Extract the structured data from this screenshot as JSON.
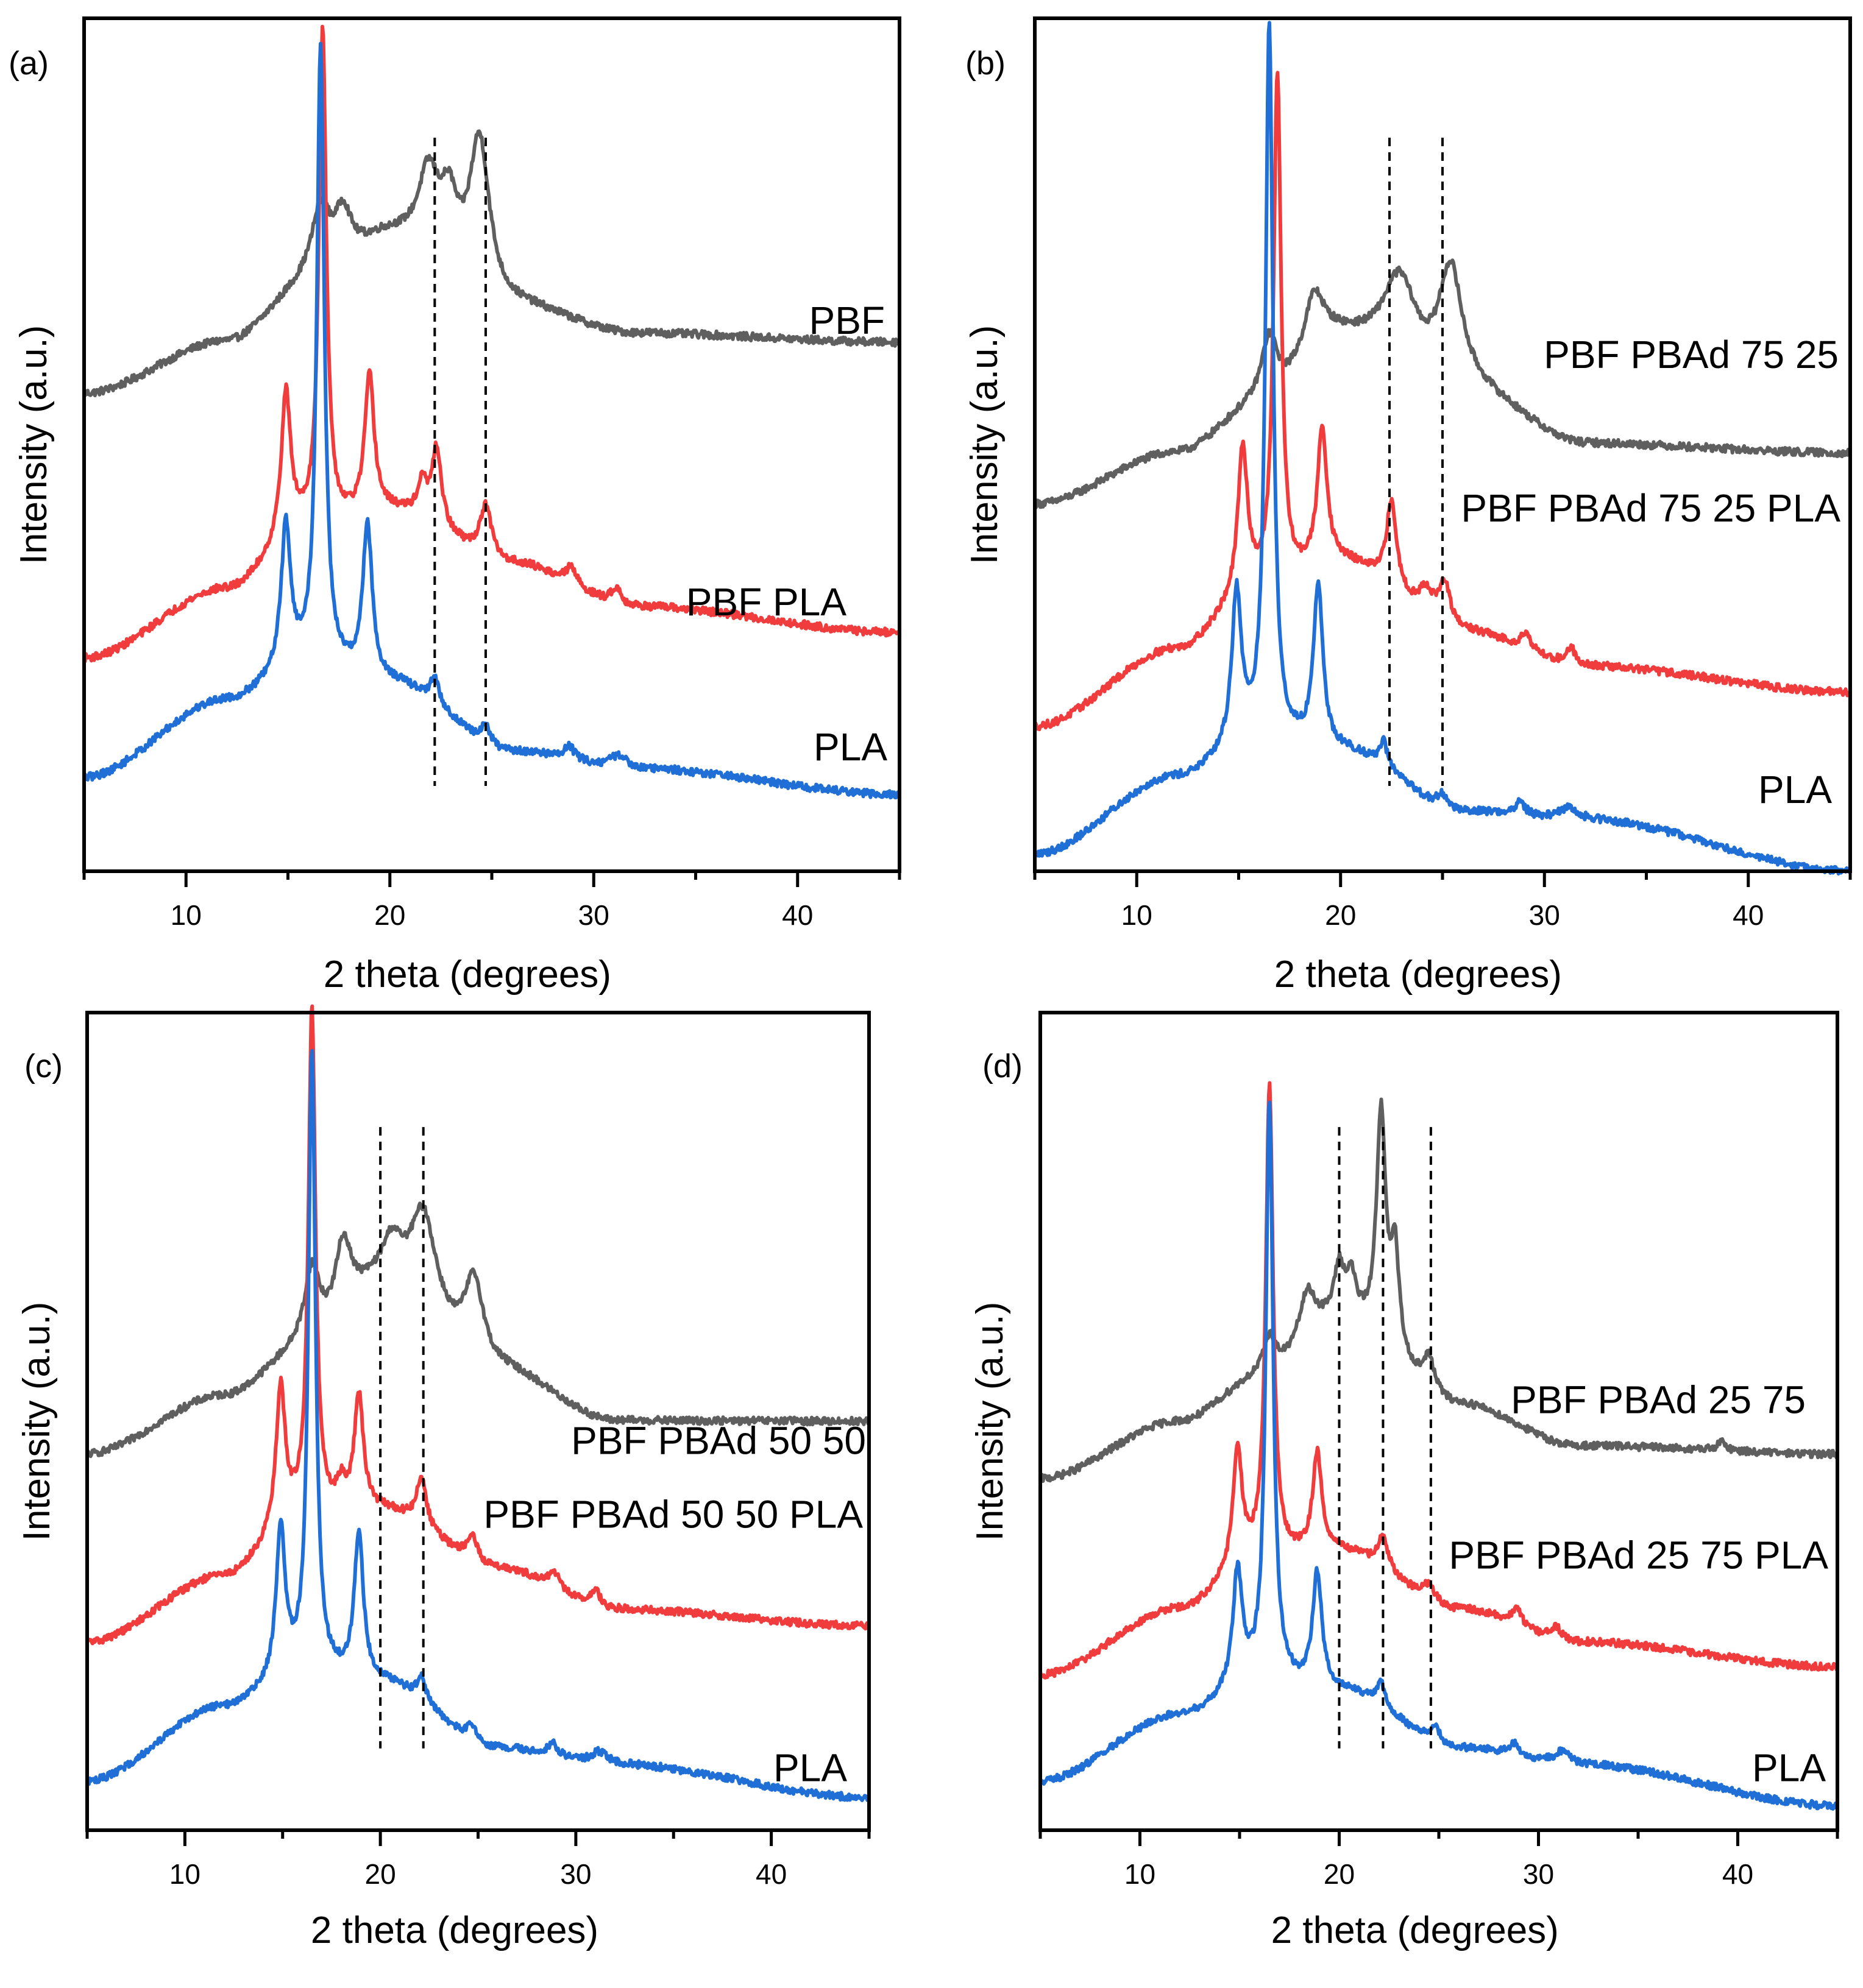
{
  "figure": {
    "colors": {
      "gray": "#5f5f5f",
      "red": "#f03c3c",
      "blue": "#1f6fd6",
      "axis": "#000000"
    }
  },
  "chart_data": [
    {
      "type": "line",
      "panel_label": "(a)",
      "xlabel": "2 theta (degrees)",
      "ylabel": "Intensity (a.u.)",
      "xlim": [
        5,
        45
      ],
      "ylim": [
        0,
        100
      ],
      "xticks": [
        "10",
        "20",
        "30",
        "40"
      ],
      "xtick_values": [
        10,
        20,
        30,
        40
      ],
      "dashed_lines_x": [
        22.2,
        24.7
      ],
      "series": [
        {
          "name": "PBF",
          "color": "gray",
          "baseline": [
            [
              5,
              56
            ],
            [
              12,
              62
            ],
            [
              16,
              68
            ],
            [
              20,
              74
            ],
            [
              26,
              66
            ],
            [
              32,
              63
            ],
            [
              45,
              62
            ]
          ],
          "peaks": [
            [
              16.6,
              9,
              0.6
            ],
            [
              17.7,
              6,
              0.5
            ],
            [
              21.9,
              9,
              0.6
            ],
            [
              22.9,
              7,
              0.5
            ],
            [
              24.4,
              18,
              0.6
            ]
          ]
        },
        {
          "name": "PBF PLA",
          "color": "red",
          "baseline": [
            [
              5,
              25
            ],
            [
              12,
              33
            ],
            [
              16,
              40
            ],
            [
              20,
              42
            ],
            [
              26,
              36
            ],
            [
              32,
              31
            ],
            [
              45,
              28
            ]
          ],
          "peaks": [
            [
              14.9,
              17,
              0.28
            ],
            [
              16.7,
              58,
              0.22
            ],
            [
              19.0,
              16,
              0.28
            ],
            [
              21.6,
              4,
              0.3
            ],
            [
              22.3,
              9,
              0.28
            ],
            [
              24.7,
              6,
              0.35
            ],
            [
              28.9,
              2,
              0.3
            ],
            [
              31.1,
              2,
              0.3
            ]
          ]
        },
        {
          "name": "PLA",
          "color": "blue",
          "baseline": [
            [
              5,
              11
            ],
            [
              12,
              20
            ],
            [
              16,
              24
            ],
            [
              20,
              22
            ],
            [
              26,
              14
            ],
            [
              32,
              12
            ],
            [
              45,
              9
            ]
          ],
          "peaks": [
            [
              14.9,
              17,
              0.28
            ],
            [
              16.6,
              72,
              0.22
            ],
            [
              18.9,
              18,
              0.28
            ],
            [
              22.2,
              3,
              0.25
            ],
            [
              24.7,
              2,
              0.3
            ],
            [
              28.8,
              1.5,
              0.3
            ],
            [
              31.2,
              1.5,
              0.5
            ]
          ]
        }
      ],
      "curve_labels": [
        "PBF",
        "PBF PLA",
        "PLA"
      ]
    },
    {
      "type": "line",
      "panel_label": "(b)",
      "xlabel": "2 theta (degrees)",
      "ylabel": "Intensity (a.u.)",
      "xlim": [
        5,
        45
      ],
      "ylim": [
        0,
        100
      ],
      "xticks": [
        "10",
        "20",
        "30",
        "40"
      ],
      "xtick_values": [
        10,
        20,
        30,
        40
      ],
      "dashed_lines_x": [
        22.4,
        25.0
      ],
      "series": [
        {
          "name": "PBF PBAd 75 25",
          "color": "gray",
          "baseline": [
            [
              5,
              43
            ],
            [
              12,
              49
            ],
            [
              16,
              54
            ],
            [
              20,
              62
            ],
            [
              26,
              56
            ],
            [
              32,
              50
            ],
            [
              45,
              49
            ]
          ],
          "peaks": [
            [
              16.5,
              8,
              0.5
            ],
            [
              18.7,
              7,
              0.6
            ],
            [
              22.9,
              10,
              1.0
            ],
            [
              25.4,
              14,
              0.7
            ]
          ]
        },
        {
          "name": "PBF PBAd 75 25 PLA",
          "color": "red",
          "baseline": [
            [
              5,
              17
            ],
            [
              12,
              26
            ],
            [
              16,
              33
            ],
            [
              20,
              36
            ],
            [
              26,
              28
            ],
            [
              32,
              24
            ],
            [
              45,
              21
            ]
          ],
          "peaks": [
            [
              15.2,
              17,
              0.28
            ],
            [
              16.9,
              60,
              0.22
            ],
            [
              19.1,
              16,
              0.28
            ],
            [
              22.5,
              10,
              0.3
            ],
            [
              24.2,
              3,
              0.4
            ],
            [
              25.1,
              5,
              0.35
            ],
            [
              29.1,
              2,
              0.3
            ],
            [
              31.3,
              2,
              0.3
            ]
          ]
        },
        {
          "name": "PLA",
          "color": "blue",
          "baseline": [
            [
              5,
              2
            ],
            [
              12,
              11
            ],
            [
              16,
              15
            ],
            [
              20,
              14
            ],
            [
              26,
              7
            ],
            [
              32,
              6
            ],
            [
              45,
              0
            ]
          ],
          "peaks": [
            [
              14.9,
              18,
              0.28
            ],
            [
              16.5,
              84,
              0.22
            ],
            [
              18.9,
              19,
              0.28
            ],
            [
              22.1,
              3,
              0.25
            ],
            [
              25.0,
              1.5,
              0.3
            ],
            [
              28.8,
              1.5,
              0.3
            ],
            [
              31.2,
              1.5,
              0.5
            ]
          ]
        }
      ],
      "curve_labels": [
        "PBF PBAd 75 25",
        "PBF PBAd 75 25 PLA",
        "PLA"
      ]
    },
    {
      "type": "line",
      "panel_label": "(c)",
      "xlabel": "2 theta (degrees)",
      "ylabel": "Intensity (a.u.)",
      "xlim": [
        5,
        45
      ],
      "ylim": [
        0,
        100
      ],
      "xticks": [
        "10",
        "20",
        "30",
        "40"
      ],
      "xtick_values": [
        10,
        20,
        30,
        40
      ],
      "dashed_lines_x": [
        20.0,
        22.2
      ],
      "series": [
        {
          "name": "PBF PBAd 50 50",
          "color": "gray",
          "baseline": [
            [
              5,
              46
            ],
            [
              12,
              53
            ],
            [
              16,
              58
            ],
            [
              20,
              66
            ],
            [
              26,
              56
            ],
            [
              32,
              50
            ],
            [
              45,
              50
            ]
          ],
          "peaks": [
            [
              16.5,
              10,
              0.5
            ],
            [
              18.1,
              9,
              0.5
            ],
            [
              20.6,
              5,
              0.6
            ],
            [
              22.2,
              12,
              0.8
            ],
            [
              24.8,
              10,
              0.6
            ]
          ]
        },
        {
          "name": "PBF PBAd 50 50 PLA",
          "color": "red",
          "baseline": [
            [
              5,
              23
            ],
            [
              12,
              31
            ],
            [
              16,
              38
            ],
            [
              20,
              39
            ],
            [
              26,
              32
            ],
            [
              32,
              27
            ],
            [
              45,
              25
            ]
          ],
          "peaks": [
            [
              14.9,
              17,
              0.28
            ],
            [
              16.5,
              62,
              0.22
            ],
            [
              18.0,
              3,
              0.3
            ],
            [
              18.9,
              14,
              0.28
            ],
            [
              22.1,
              6,
              0.3
            ],
            [
              24.7,
              3,
              0.35
            ],
            [
              28.9,
              2,
              0.3
            ],
            [
              31.0,
              2,
              0.3
            ]
          ]
        },
        {
          "name": "PLA",
          "color": "blue",
          "baseline": [
            [
              5,
              6
            ],
            [
              12,
              15
            ],
            [
              16,
              19
            ],
            [
              20,
              18
            ],
            [
              26,
              10
            ],
            [
              32,
              8
            ],
            [
              45,
              4
            ]
          ],
          "peaks": [
            [
              14.9,
              18,
              0.28
            ],
            [
              16.5,
              76,
              0.22
            ],
            [
              18.9,
              18,
              0.28
            ],
            [
              22.1,
              3,
              0.25
            ],
            [
              24.7,
              2,
              0.3
            ],
            [
              28.8,
              1.5,
              0.3
            ],
            [
              31.2,
              1.5,
              0.5
            ]
          ]
        }
      ],
      "curve_labels": [
        "PBF PBAd 50 50",
        "PBF PBAd 50 50 PLA",
        "PLA"
      ]
    },
    {
      "type": "line",
      "panel_label": "(d)",
      "xlabel": "2 theta (degrees)",
      "ylabel": "Intensity (a.u.)",
      "xlim": [
        5,
        45
      ],
      "ylim": [
        0,
        100
      ],
      "xticks": [
        "10",
        "20",
        "30",
        "40"
      ],
      "xtick_values": [
        10,
        20,
        30,
        40
      ],
      "dashed_lines_x": [
        20.0,
        22.2,
        24.6
      ],
      "series": [
        {
          "name": "PBF PBAd 25 75",
          "color": "gray",
          "baseline": [
            [
              5,
              43
            ],
            [
              12,
              50
            ],
            [
              16,
              55
            ],
            [
              20,
              62
            ],
            [
              26,
              52
            ],
            [
              32,
              47
            ],
            [
              45,
              46
            ]
          ],
          "peaks": [
            [
              16.5,
              5,
              0.4
            ],
            [
              18.4,
              6,
              0.5
            ],
            [
              20.0,
              6,
              0.3
            ],
            [
              20.6,
              5,
              0.3
            ],
            [
              22.1,
              28,
              0.28
            ],
            [
              22.8,
              12,
              0.25
            ],
            [
              24.5,
              4,
              0.35
            ],
            [
              39.2,
              1,
              0.3
            ]
          ]
        },
        {
          "name": "PBF PBAd 25 75 PLA",
          "color": "red",
          "baseline": [
            [
              5,
              19
            ],
            [
              12,
              27
            ],
            [
              16,
              33
            ],
            [
              20,
              34
            ],
            [
              26,
              27
            ],
            [
              32,
              23
            ],
            [
              45,
              20
            ]
          ],
          "peaks": [
            [
              14.9,
              14,
              0.28
            ],
            [
              16.5,
              58,
              0.22
            ],
            [
              18.9,
              12,
              0.28
            ],
            [
              22.2,
              4,
              0.3
            ],
            [
              24.5,
              2,
              0.35
            ],
            [
              28.9,
              2,
              0.3
            ],
            [
              30.9,
              1.5,
              0.3
            ]
          ]
        },
        {
          "name": "PLA",
          "color": "blue",
          "baseline": [
            [
              5,
              6
            ],
            [
              12,
              14
            ],
            [
              16,
              18
            ],
            [
              20,
              17
            ],
            [
              26,
              10
            ],
            [
              32,
              8
            ],
            [
              45,
              3
            ]
          ],
          "peaks": [
            [
              14.9,
              14,
              0.28
            ],
            [
              16.5,
              71,
              0.22
            ],
            [
              18.9,
              14,
              0.28
            ],
            [
              22.1,
              3,
              0.25
            ],
            [
              24.8,
              2,
              0.3
            ],
            [
              28.8,
              1.5,
              0.3
            ],
            [
              31.2,
              1.5,
              0.5
            ]
          ]
        }
      ],
      "curve_labels": [
        "PBF PBAd 25 75",
        "PBF PBAd 25 75 PLA",
        "PLA"
      ]
    }
  ]
}
